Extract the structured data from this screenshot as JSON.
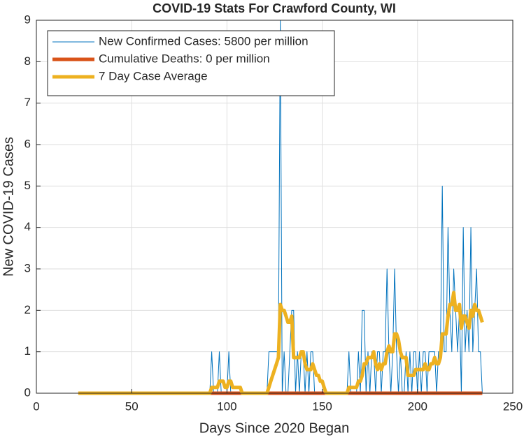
{
  "chart_data": {
    "type": "line",
    "title": "COVID-19 Stats For Crawford County, WI",
    "xlabel": "Days Since 2020 Began",
    "ylabel": "New COVID-19 Cases",
    "xlim": [
      0,
      250
    ],
    "xticks": [
      0,
      50,
      100,
      150,
      200,
      250
    ],
    "ylim": [
      0,
      9
    ],
    "yticks": [
      0,
      1,
      2,
      3,
      4,
      5,
      6,
      7,
      8,
      9
    ],
    "grid": true,
    "legend": "upper-left",
    "x": [
      22,
      23,
      24,
      25,
      26,
      27,
      28,
      29,
      30,
      31,
      32,
      33,
      34,
      35,
      36,
      37,
      38,
      39,
      40,
      41,
      42,
      43,
      44,
      45,
      46,
      47,
      48,
      49,
      50,
      51,
      52,
      53,
      54,
      55,
      56,
      57,
      58,
      59,
      60,
      61,
      62,
      63,
      64,
      65,
      66,
      67,
      68,
      69,
      70,
      71,
      72,
      73,
      74,
      75,
      76,
      77,
      78,
      79,
      80,
      81,
      82,
      83,
      84,
      85,
      86,
      87,
      88,
      89,
      90,
      91,
      92,
      93,
      94,
      95,
      96,
      97,
      98,
      99,
      100,
      101,
      102,
      103,
      104,
      105,
      106,
      107,
      108,
      109,
      110,
      111,
      112,
      113,
      114,
      115,
      116,
      117,
      118,
      119,
      120,
      121,
      122,
      123,
      124,
      125,
      126,
      127,
      128,
      129,
      130,
      131,
      132,
      133,
      134,
      135,
      136,
      137,
      138,
      139,
      140,
      141,
      142,
      143,
      144,
      145,
      146,
      147,
      148,
      149,
      150,
      151,
      152,
      153,
      154,
      155,
      156,
      157,
      158,
      159,
      160,
      161,
      162,
      163,
      164,
      165,
      166,
      167,
      168,
      169,
      170,
      171,
      172,
      173,
      174,
      175,
      176,
      177,
      178,
      179,
      180,
      181,
      182,
      183,
      184,
      185,
      186,
      187,
      188,
      189,
      190,
      191,
      192,
      193,
      194,
      195,
      196,
      197,
      198,
      199,
      200,
      201,
      202,
      203,
      204,
      205,
      206,
      207,
      208,
      209,
      210,
      211,
      212,
      213,
      214,
      215,
      216,
      217,
      218,
      219,
      220,
      221,
      222,
      223,
      224,
      225,
      226,
      227,
      228,
      229,
      230,
      231,
      232,
      233,
      234
    ],
    "series": [
      {
        "name": "New Confirmed Cases: 5800 per million",
        "color": "#0072bd",
        "width": 1,
        "values": [
          0,
          0,
          0,
          0,
          0,
          0,
          0,
          0,
          0,
          0,
          0,
          0,
          0,
          0,
          0,
          0,
          0,
          0,
          0,
          0,
          0,
          0,
          0,
          0,
          0,
          0,
          0,
          0,
          0,
          0,
          0,
          0,
          0,
          0,
          0,
          0,
          0,
          0,
          0,
          0,
          0,
          0,
          0,
          0,
          0,
          0,
          0,
          0,
          0,
          0,
          0,
          0,
          0,
          0,
          0,
          0,
          0,
          0,
          0,
          0,
          0,
          0,
          0,
          0,
          0,
          0,
          0,
          0,
          0,
          0,
          1,
          0,
          0,
          0,
          1,
          0,
          0,
          0,
          0,
          1,
          0,
          0,
          0,
          0,
          0,
          0,
          0,
          0,
          0,
          0,
          0,
          0,
          0,
          0,
          0,
          0,
          0,
          0,
          0,
          0,
          1,
          1,
          1,
          1,
          1,
          1,
          9,
          0,
          1,
          0,
          0,
          1,
          2,
          2,
          0,
          1,
          0,
          1,
          1,
          0,
          1,
          0,
          1,
          1,
          0,
          0,
          0,
          0,
          0,
          0,
          0,
          0,
          0,
          0,
          0,
          0,
          0,
          0,
          0,
          0,
          0,
          0,
          1,
          0,
          0,
          0,
          0,
          1,
          0,
          2,
          2,
          0,
          1,
          0,
          1,
          1,
          0,
          1,
          1,
          0,
          1,
          1,
          3,
          1,
          0,
          1,
          3,
          1,
          0,
          1,
          0,
          0,
          1,
          0,
          1,
          0,
          1,
          1,
          0,
          1,
          0,
          1,
          1,
          0,
          1,
          1,
          1,
          1,
          0,
          1,
          1,
          5,
          1,
          1,
          4,
          2,
          1,
          3,
          2,
          1,
          2,
          0,
          4,
          1,
          2,
          1,
          4,
          1,
          2,
          3,
          1,
          1,
          0
        ]
      },
      {
        "name": "Cumulative Deaths: 0 per million",
        "color": "#d95319",
        "width": 5,
        "values": [
          0,
          0,
          0,
          0,
          0,
          0,
          0,
          0,
          0,
          0,
          0,
          0,
          0,
          0,
          0,
          0,
          0,
          0,
          0,
          0,
          0,
          0,
          0,
          0,
          0,
          0,
          0,
          0,
          0,
          0,
          0,
          0,
          0,
          0,
          0,
          0,
          0,
          0,
          0,
          0,
          0,
          0,
          0,
          0,
          0,
          0,
          0,
          0,
          0,
          0,
          0,
          0,
          0,
          0,
          0,
          0,
          0,
          0,
          0,
          0,
          0,
          0,
          0,
          0,
          0,
          0,
          0,
          0,
          0,
          0,
          0,
          0,
          0,
          0,
          0,
          0,
          0,
          0,
          0,
          0,
          0,
          0,
          0,
          0,
          0,
          0,
          0,
          0,
          0,
          0,
          0,
          0,
          0,
          0,
          0,
          0,
          0,
          0,
          0,
          0,
          0,
          0,
          0,
          0,
          0,
          0,
          0,
          0,
          0,
          0,
          0,
          0,
          0,
          0,
          0,
          0,
          0,
          0,
          0,
          0,
          0,
          0,
          0,
          0,
          0,
          0,
          0,
          0,
          0,
          0,
          0,
          0,
          0,
          0,
          0,
          0,
          0,
          0,
          0,
          0,
          0,
          0,
          0,
          0,
          0,
          0,
          0,
          0,
          0,
          0,
          0,
          0,
          0,
          0,
          0,
          0,
          0,
          0,
          0,
          0,
          0,
          0,
          0,
          0,
          0,
          0,
          0,
          0,
          0,
          0,
          0,
          0,
          0,
          0,
          0,
          0,
          0,
          0,
          0,
          0,
          0,
          0,
          0,
          0,
          0,
          0,
          0,
          0,
          0,
          0,
          0,
          0,
          0,
          0,
          0,
          0,
          0,
          0,
          0,
          0,
          0,
          0,
          0,
          0,
          0,
          0,
          0,
          0,
          0,
          0,
          0,
          0,
          0
        ]
      },
      {
        "name": "7 Day Case Average",
        "color": "#edb120",
        "width": 5,
        "values": [
          0,
          0,
          0,
          0,
          0,
          0,
          0,
          0,
          0,
          0,
          0,
          0,
          0,
          0,
          0,
          0,
          0,
          0,
          0,
          0,
          0,
          0,
          0,
          0,
          0,
          0,
          0,
          0,
          0,
          0,
          0,
          0,
          0,
          0,
          0,
          0,
          0,
          0,
          0,
          0,
          0,
          0,
          0,
          0,
          0,
          0,
          0,
          0,
          0,
          0,
          0,
          0,
          0,
          0,
          0,
          0,
          0,
          0,
          0,
          0,
          0,
          0,
          0,
          0,
          0,
          0,
          0,
          0,
          0,
          0,
          0.14,
          0.14,
          0.14,
          0.14,
          0.29,
          0.29,
          0.29,
          0.14,
          0.14,
          0.29,
          0.29,
          0.14,
          0.14,
          0.14,
          0.14,
          0.14,
          0,
          0,
          0,
          0,
          0,
          0,
          0,
          0,
          0,
          0,
          0,
          0,
          0,
          0,
          0.14,
          0.29,
          0.43,
          0.57,
          0.71,
          0.86,
          2.14,
          2,
          2,
          1.86,
          1.71,
          1.71,
          1.86,
          0.86,
          0.86,
          0.86,
          0.86,
          1,
          1,
          0.71,
          0.57,
          0.57,
          0.57,
          0.71,
          0.57,
          0.43,
          0.43,
          0.29,
          0.29,
          0.14,
          0,
          0,
          0,
          0,
          0,
          0,
          0,
          0,
          0,
          0,
          0,
          0,
          0.14,
          0.14,
          0.14,
          0.14,
          0.14,
          0.29,
          0.29,
          0.43,
          0.71,
          0.71,
          0.86,
          0.86,
          0.86,
          1,
          0.71,
          0.57,
          0.71,
          0.57,
          0.71,
          0.71,
          1,
          1.14,
          1,
          1,
          1.43,
          1.43,
          1.29,
          1,
          0.86,
          0.86,
          0.86,
          0.43,
          0.43,
          0.43,
          0.43,
          0.57,
          0.57,
          0.57,
          0.57,
          0.57,
          0.71,
          0.57,
          0.57,
          0.71,
          0.71,
          0.86,
          0.71,
          0.71,
          0.86,
          1.43,
          1.43,
          1.43,
          1.86,
          2.14,
          2.14,
          2.43,
          2,
          2,
          2.14,
          1.57,
          1.86,
          1.86,
          1.71,
          1.57,
          2,
          1.86,
          2.14,
          2,
          2,
          1.86,
          1.71
        ]
      }
    ]
  }
}
